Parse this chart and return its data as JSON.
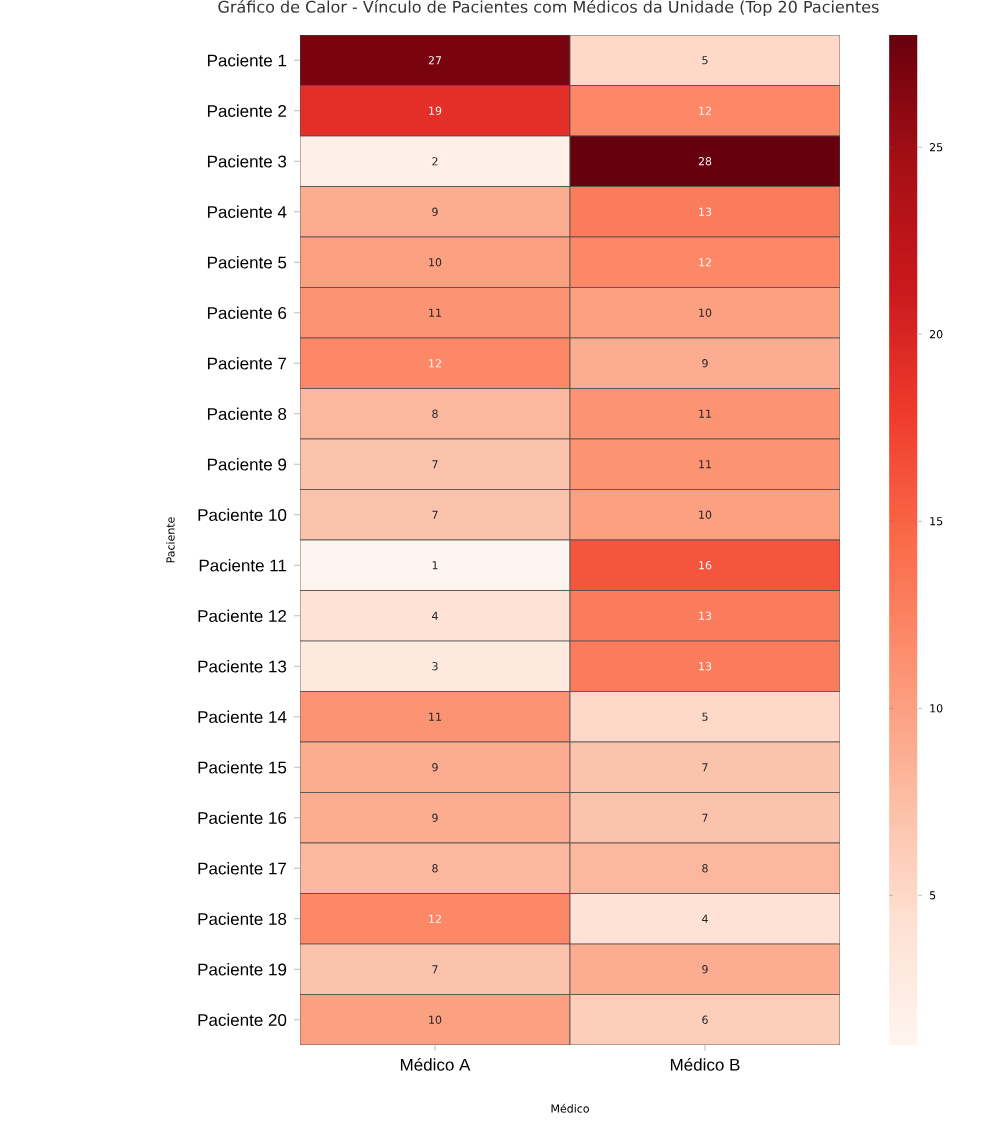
{
  "chart_data": {
    "type": "heatmap",
    "title": "Gráfico de Calor - Vínculo de Pacientes com Médicos da Unidade (Top 20 Pacientes",
    "xlabel": "Médico",
    "ylabel": "Paciente",
    "categories": [
      "Médico A",
      "Médico B"
    ],
    "y_categories": [
      "Paciente 1",
      "Paciente 2",
      "Paciente 3",
      "Paciente 4",
      "Paciente 5",
      "Paciente 6",
      "Paciente 7",
      "Paciente 8",
      "Paciente 9",
      "Paciente 10",
      "Paciente 11",
      "Paciente 12",
      "Paciente 13",
      "Paciente 14",
      "Paciente 15",
      "Paciente 16",
      "Paciente 17",
      "Paciente 18",
      "Paciente 19",
      "Paciente 20"
    ],
    "cells": [
      [
        27,
        5
      ],
      [
        19,
        12
      ],
      [
        2,
        28
      ],
      [
        9,
        13
      ],
      [
        10,
        12
      ],
      [
        11,
        10
      ],
      [
        12,
        9
      ],
      [
        8,
        11
      ],
      [
        7,
        11
      ],
      [
        7,
        10
      ],
      [
        1,
        16
      ],
      [
        4,
        13
      ],
      [
        3,
        13
      ],
      [
        11,
        5
      ],
      [
        9,
        7
      ],
      [
        9,
        7
      ],
      [
        8,
        8
      ],
      [
        12,
        4
      ],
      [
        7,
        9
      ],
      [
        10,
        6
      ]
    ],
    "data_labels": true,
    "clim": [
      1,
      28
    ],
    "cticks": [
      5,
      10,
      15,
      20,
      25
    ]
  }
}
